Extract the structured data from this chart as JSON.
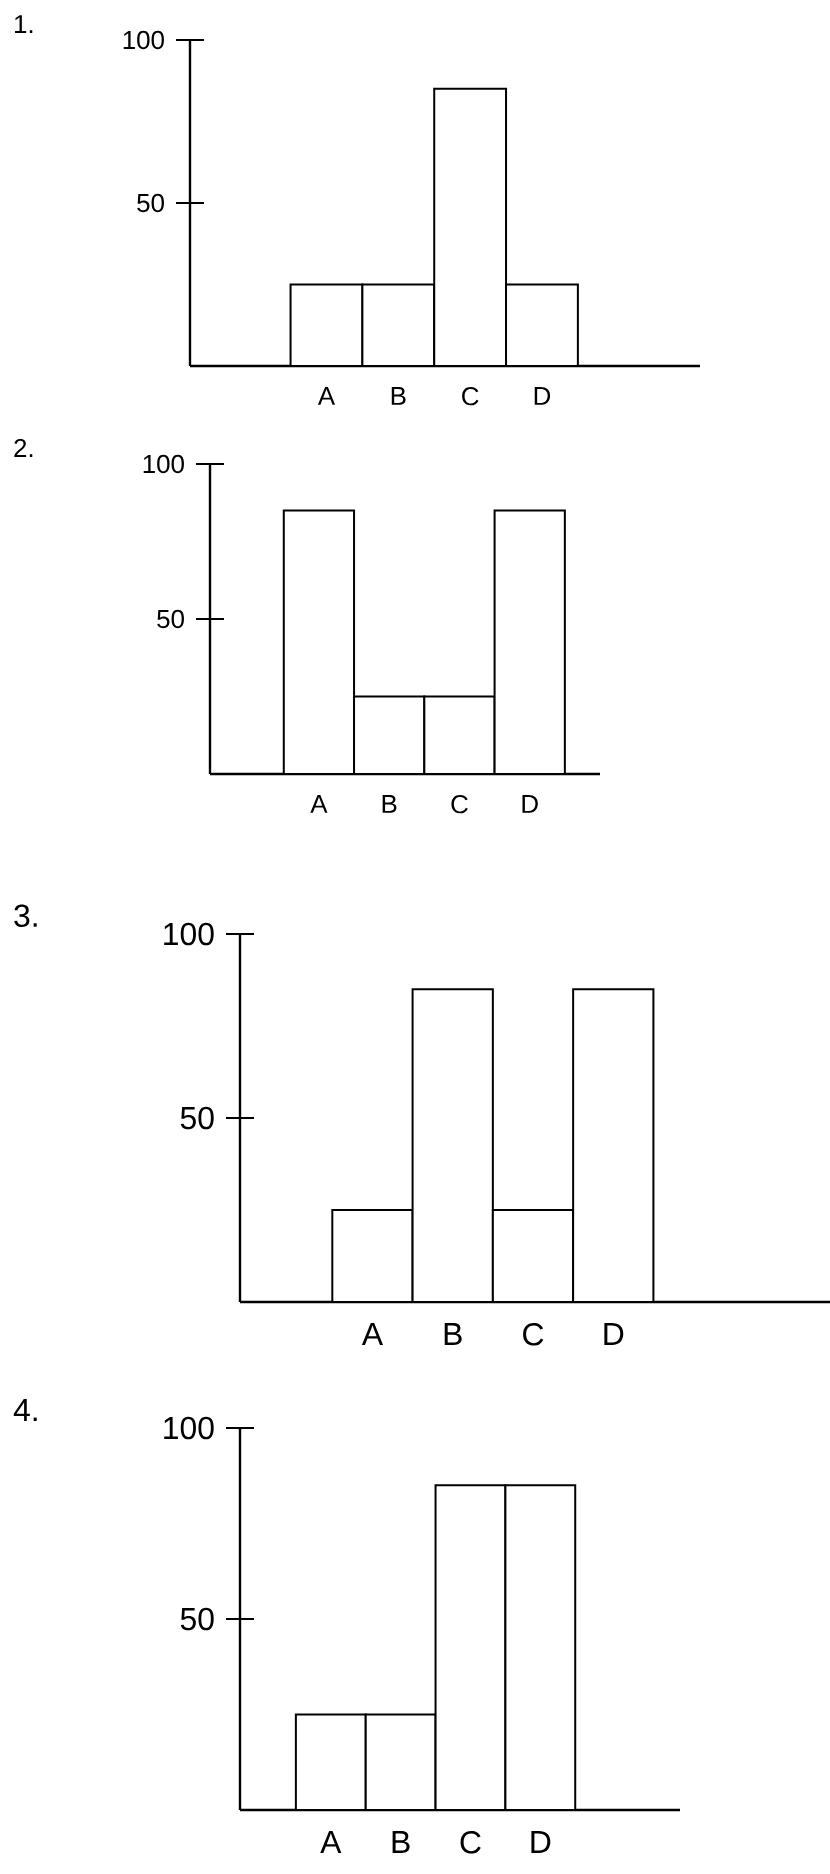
{
  "chart_data": [
    {
      "type": "bar",
      "title": "1.",
      "categories": [
        "A",
        "B",
        "C",
        "D"
      ],
      "values": [
        25,
        25,
        85,
        25
      ],
      "color": "#ffffff",
      "ylim": [
        0,
        100
      ],
      "yticks": [
        50,
        100
      ]
    },
    {
      "type": "bar",
      "title": "2.",
      "categories": [
        "A",
        "B",
        "C",
        "D"
      ],
      "values": [
        85,
        25,
        25,
        85
      ],
      "color": "#ffffff",
      "ylim": [
        0,
        100
      ],
      "yticks": [
        50,
        100
      ]
    },
    {
      "type": "bar",
      "title": "3.",
      "categories": [
        "A",
        "B",
        "C",
        "D"
      ],
      "values": [
        25,
        85,
        25,
        85
      ],
      "color": "#ffffff",
      "ylim": [
        0,
        100
      ],
      "yticks": [
        50,
        100
      ]
    },
    {
      "type": "bar",
      "title": "4.",
      "categories": [
        "A",
        "B",
        "C",
        "D"
      ],
      "values": [
        25,
        25,
        85,
        85
      ],
      "color": "#ffffff",
      "ylim": [
        0,
        100
      ],
      "yticks": [
        50,
        100
      ]
    }
  ]
}
